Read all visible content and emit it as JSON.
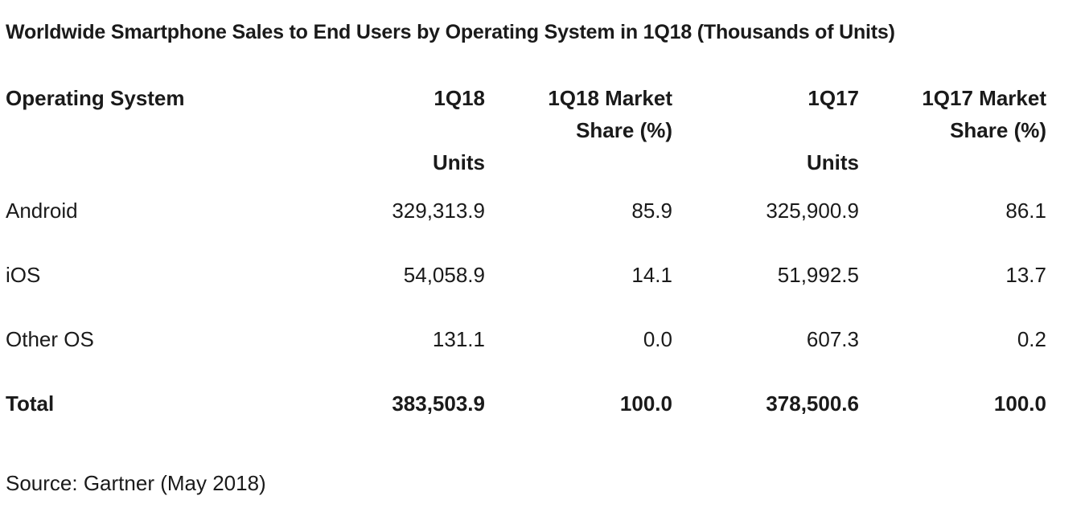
{
  "title": "Worldwide Smartphone Sales to End Users by Operating System in 1Q18 (Thousands of Units)",
  "source": "Source: Gartner (May 2018)",
  "chart_data": {
    "type": "table",
    "title": "Worldwide Smartphone Sales to End Users by Operating System in 1Q18 (Thousands of Units)",
    "columns": [
      {
        "lines": [
          "Operating System"
        ]
      },
      {
        "lines": [
          "1Q18",
          "",
          "Units"
        ]
      },
      {
        "lines": [
          "1Q18 Market",
          "Share (%)"
        ]
      },
      {
        "lines": [
          "1Q17",
          "",
          "Units"
        ]
      },
      {
        "lines": [
          "1Q17 Market",
          "Share (%)"
        ]
      }
    ],
    "rows": [
      {
        "os": "Android",
        "q18_units": "329,313.9",
        "q18_share": "85.9",
        "q17_units": "325,900.9",
        "q17_share": "86.1"
      },
      {
        "os": "iOS",
        "q18_units": "54,058.9",
        "q18_share": "14.1",
        "q17_units": "51,992.5",
        "q17_share": "13.7"
      },
      {
        "os": "Other OS",
        "q18_units": "131.1",
        "q18_share": "0.0",
        "q17_units": "607.3",
        "q17_share": "0.2"
      }
    ],
    "total": {
      "os": "Total",
      "q18_units": "383,503.9",
      "q18_share": "100.0",
      "q17_units": "378,500.6",
      "q17_share": "100.0"
    }
  }
}
